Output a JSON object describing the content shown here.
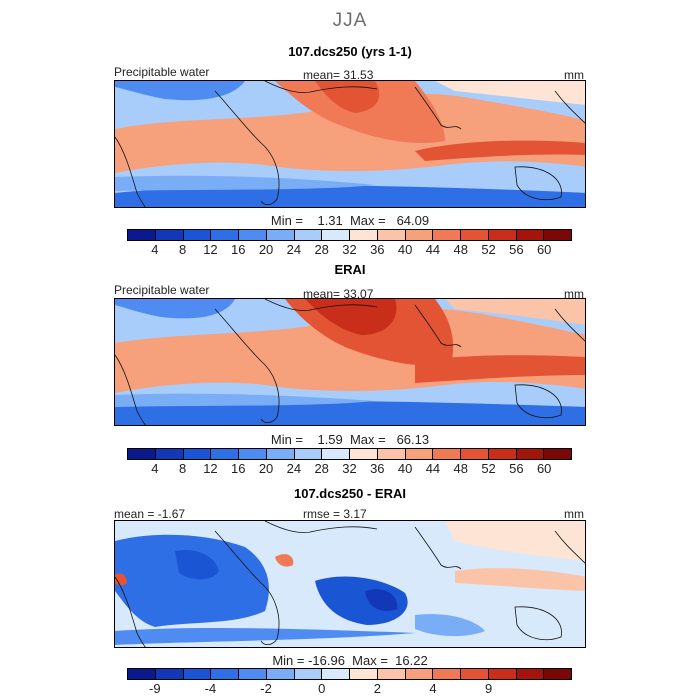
{
  "figure": {
    "season": "JJA"
  },
  "panels": [
    {
      "title": "107.dcs250 (yrs 1-1)",
      "variable": "Precipitable water",
      "stat": "mean=   31.53",
      "units": "mm",
      "minmax": "Min =    1.31  Max =   64.09",
      "colorbar": {
        "levels": [
          "4",
          "8",
          "12",
          "16",
          "20",
          "24",
          "28",
          "32",
          "36",
          "40",
          "44",
          "48",
          "52",
          "56",
          "60"
        ],
        "colors": [
          "#0a1a8c",
          "#1238b8",
          "#1a55d4",
          "#2e6fe6",
          "#4f8cf2",
          "#79aef7",
          "#a9cdfa",
          "#d8e9fc",
          "#fde4d4",
          "#fbc4a8",
          "#f7a07c",
          "#f07a55",
          "#e25433",
          "#c82e1a",
          "#a3140d",
          "#7a0806"
        ]
      }
    },
    {
      "title": "ERAI",
      "variable": "Precipitable water",
      "stat": "mean=   33.07",
      "units": "mm",
      "minmax": "Min =    1.59  Max =   66.13",
      "colorbar": {
        "levels": [
          "4",
          "8",
          "12",
          "16",
          "20",
          "24",
          "28",
          "32",
          "36",
          "40",
          "44",
          "48",
          "52",
          "56",
          "60"
        ],
        "colors": [
          "#0a1a8c",
          "#1238b8",
          "#1a55d4",
          "#2e6fe6",
          "#4f8cf2",
          "#79aef7",
          "#a9cdfa",
          "#d8e9fc",
          "#fde4d4",
          "#fbc4a8",
          "#f7a07c",
          "#f07a55",
          "#e25433",
          "#c82e1a",
          "#a3140d",
          "#7a0806"
        ]
      }
    },
    {
      "title": "107.dcs250 - ERAI",
      "variable": "mean =   -1.67",
      "stat": "rmse =    3.17",
      "units": "mm",
      "minmax": "Min = -16.96  Max =  16.22",
      "colorbar": {
        "levels": [
          "-9",
          "-4",
          "-2",
          "0",
          "2",
          "4",
          "9"
        ],
        "label_slots": [
          1,
          3,
          5,
          7,
          9,
          11,
          13
        ],
        "colors": [
          "#0a1a8c",
          "#1238b8",
          "#1a55d4",
          "#2e6fe6",
          "#4f8cf2",
          "#79aef7",
          "#a9cdfa",
          "#d8e9fc",
          "#fde4d4",
          "#fbc4a8",
          "#f7a07c",
          "#f07a55",
          "#e25433",
          "#c82e1a",
          "#a3140d",
          "#7a0806"
        ]
      }
    }
  ]
}
